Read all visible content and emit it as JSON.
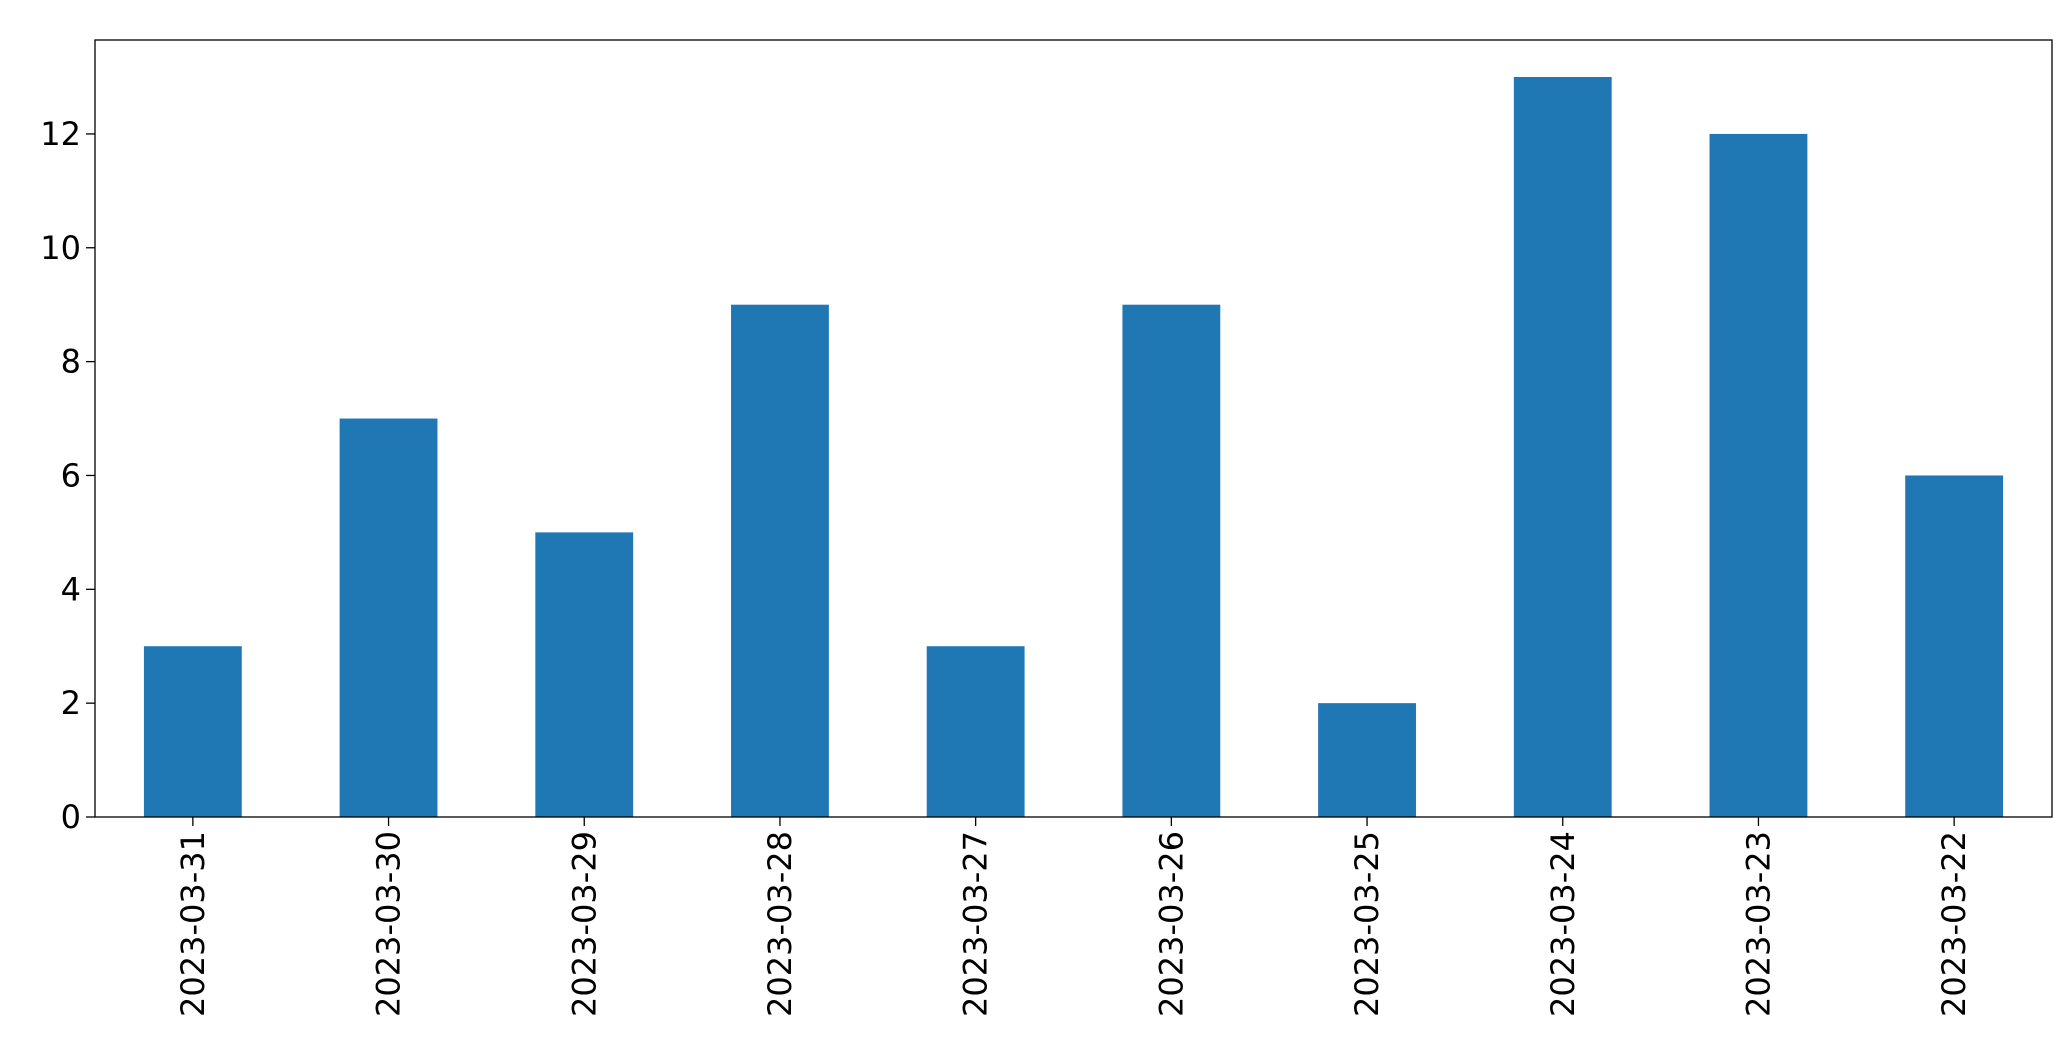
{
  "chart_data": {
    "type": "bar",
    "categories": [
      "2023-03-31",
      "2023-03-30",
      "2023-03-29",
      "2023-03-28",
      "2023-03-27",
      "2023-03-26",
      "2023-03-25",
      "2023-03-24",
      "2023-03-23",
      "2023-03-22"
    ],
    "values": [
      3,
      7,
      5,
      9,
      3,
      9,
      2,
      13,
      12,
      6
    ],
    "color": "#1f77b4",
    "ylim": [
      0,
      13.65
    ],
    "yticks": [
      0,
      2,
      4,
      6,
      8,
      10,
      12
    ],
    "grid": false
  }
}
